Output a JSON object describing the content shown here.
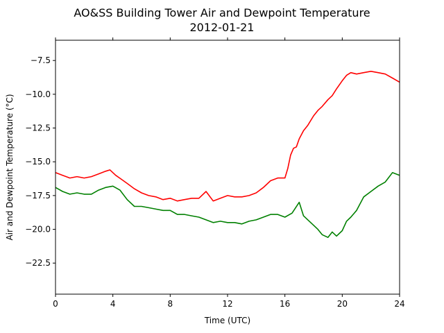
{
  "chart_data": {
    "type": "line",
    "title": "AO&SS Building Tower Air and Dewpoint Temperature",
    "subtitle": "2012-01-21",
    "xlabel": "Time (UTC)",
    "ylabel": "Air and Dewpoint Temperature (°C)",
    "xlim": [
      0,
      24
    ],
    "ylim": [
      -24.8,
      -6.0
    ],
    "x_ticks": [
      0,
      4,
      8,
      12,
      16,
      20,
      24
    ],
    "x_tick_labels": [
      "0",
      "4",
      "8",
      "12",
      "16",
      "20",
      "24"
    ],
    "y_ticks": [
      -22.5,
      -20.0,
      -17.5,
      -15.0,
      -12.5,
      -10.0,
      -7.5
    ],
    "y_tick_labels": [
      "−22.5",
      "−20.0",
      "−17.5",
      "−15.0",
      "−12.5",
      "−10.0",
      "−7.5"
    ],
    "grid": false,
    "legend": "none",
    "series": [
      {
        "color": "#ff0000",
        "x": [
          0,
          0.5,
          1,
          1.5,
          2,
          2.5,
          3,
          3.5,
          3.8,
          4.2,
          4.6,
          5,
          5.5,
          6,
          6.5,
          7,
          7.5,
          8,
          8.5,
          9,
          9.5,
          10,
          10.5,
          11,
          11.5,
          12,
          12.5,
          13,
          13.5,
          14,
          14.5,
          15,
          15.5,
          16,
          16.2,
          16.4,
          16.6,
          16.8,
          17,
          17.3,
          17.6,
          18,
          18.3,
          18.6,
          19,
          19.3,
          19.6,
          20,
          20.3,
          20.6,
          21,
          21.5,
          22,
          22.5,
          23,
          23.5,
          24
        ],
        "y": [
          -15.8,
          -16.0,
          -16.2,
          -16.1,
          -16.2,
          -16.1,
          -15.9,
          -15.7,
          -15.6,
          -16.0,
          -16.3,
          -16.6,
          -17.0,
          -17.3,
          -17.5,
          -17.6,
          -17.8,
          -17.7,
          -17.9,
          -17.8,
          -17.7,
          -17.7,
          -17.2,
          -17.9,
          -17.7,
          -17.5,
          -17.6,
          -17.6,
          -17.5,
          -17.3,
          -16.9,
          -16.4,
          -16.2,
          -16.2,
          -15.5,
          -14.5,
          -14.0,
          -13.9,
          -13.3,
          -12.7,
          -12.3,
          -11.6,
          -11.2,
          -10.9,
          -10.4,
          -10.1,
          -9.6,
          -9.0,
          -8.6,
          -8.4,
          -8.5,
          -8.4,
          -8.3,
          -8.4,
          -8.5,
          -8.8,
          -9.1
        ]
      },
      {
        "color": "#008000",
        "x": [
          0,
          0.5,
          1,
          1.5,
          2,
          2.5,
          3,
          3.5,
          4,
          4.5,
          5,
          5.5,
          6,
          6.5,
          7,
          7.5,
          8,
          8.5,
          9,
          9.5,
          10,
          10.5,
          11,
          11.5,
          12,
          12.5,
          13,
          13.5,
          14,
          14.5,
          15,
          15.5,
          16,
          16.5,
          17,
          17.3,
          17.6,
          18,
          18.3,
          18.6,
          19,
          19.3,
          19.6,
          20,
          20.3,
          20.6,
          21,
          21.5,
          22,
          22.5,
          23,
          23.5,
          24
        ],
        "y": [
          -16.9,
          -17.2,
          -17.4,
          -17.3,
          -17.4,
          -17.4,
          -17.1,
          -16.9,
          -16.8,
          -17.1,
          -17.8,
          -18.3,
          -18.3,
          -18.4,
          -18.5,
          -18.6,
          -18.6,
          -18.9,
          -18.9,
          -19.0,
          -19.1,
          -19.3,
          -19.5,
          -19.4,
          -19.5,
          -19.5,
          -19.6,
          -19.4,
          -19.3,
          -19.1,
          -18.9,
          -18.9,
          -19.1,
          -18.8,
          -18.0,
          -19.0,
          -19.3,
          -19.7,
          -20.0,
          -20.4,
          -20.6,
          -20.2,
          -20.5,
          -20.1,
          -19.4,
          -19.1,
          -18.6,
          -17.6,
          -17.2,
          -16.8,
          -16.5,
          -15.8,
          -16.0
        ]
      }
    ]
  }
}
